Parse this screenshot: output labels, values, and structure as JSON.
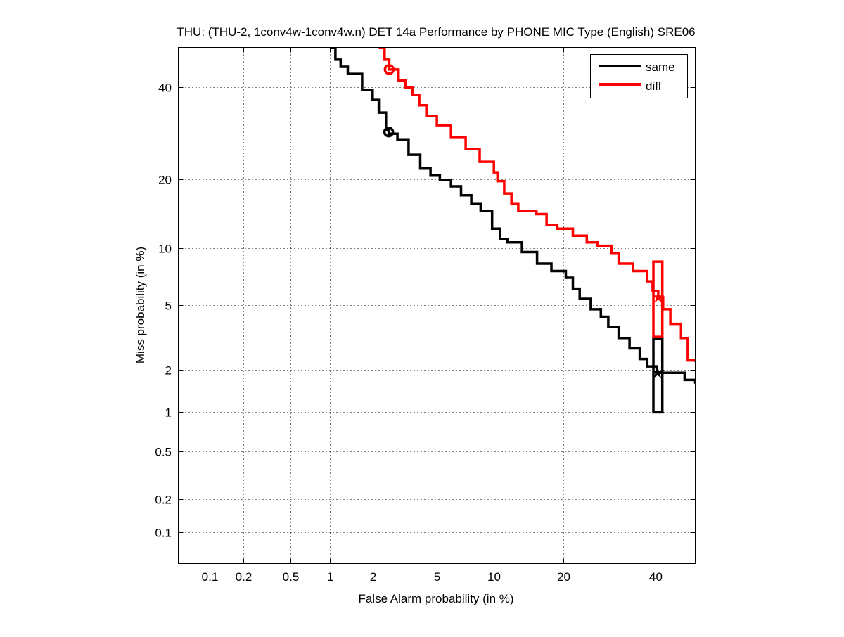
{
  "chart_data": {
    "type": "line",
    "title": "THU: (THU-2, 1conv4w-1conv4w.n) DET 14a Performance by PHONE MIC Type (English) SRE06",
    "xlabel": "False Alarm probability (in %)",
    "ylabel": "Miss probability (in %)",
    "xscale": "normal-deviate",
    "yscale": "normal-deviate",
    "xlim": [
      0.05,
      50
    ],
    "ylim": [
      0.05,
      50
    ],
    "grid": true,
    "x_ticks": [
      0.1,
      0.2,
      0.5,
      1,
      2,
      5,
      10,
      20,
      40
    ],
    "x_tick_labels": [
      "0.1",
      "0.2",
      "0.5",
      "1",
      "2",
      "5",
      "10",
      "20",
      "40"
    ],
    "y_ticks": [
      0.1,
      0.2,
      0.5,
      1,
      2,
      5,
      10,
      20,
      40
    ],
    "y_tick_labels": [
      "0.1",
      "0.2",
      "0.5",
      "1",
      "2",
      "5",
      "10",
      "20",
      "40"
    ],
    "legend_position": "top-right",
    "series": [
      {
        "name": "same",
        "color": "#000000",
        "points": [
          [
            1,
            50
          ],
          [
            1.1,
            46.9
          ],
          [
            1.2,
            45.1
          ],
          [
            1.35,
            43.3
          ],
          [
            1.7,
            39.3
          ],
          [
            2.0,
            36.9
          ],
          [
            2.2,
            33.9
          ],
          [
            2.45,
            29.9
          ],
          [
            2.55,
            29.1
          ],
          [
            2.9,
            27.9
          ],
          [
            3.4,
            24.7
          ],
          [
            4.0,
            22
          ],
          [
            4.6,
            20.7
          ],
          [
            5.2,
            19.9
          ],
          [
            6,
            18.8
          ],
          [
            6.8,
            17.3
          ],
          [
            7.7,
            15.9
          ],
          [
            8.6,
            14.9
          ],
          [
            9.8,
            12.4
          ],
          [
            10.7,
            11.1
          ],
          [
            11.6,
            10.7
          ],
          [
            13.5,
            9.6
          ],
          [
            15.7,
            8.4
          ],
          [
            18,
            7.7
          ],
          [
            20.5,
            7.1
          ],
          [
            21.8,
            6.2
          ],
          [
            23.1,
            5.45
          ],
          [
            25.3,
            4.75
          ],
          [
            27.4,
            4.3
          ],
          [
            29,
            3.75
          ],
          [
            31.3,
            3.2
          ],
          [
            33.8,
            2.75
          ],
          [
            36.2,
            2.35
          ],
          [
            38,
            2.1
          ],
          [
            40.3,
            1.9
          ],
          [
            45.5,
            1.9
          ],
          [
            47.3,
            1.7
          ],
          [
            50,
            1.6
          ]
        ],
        "min_dcf_point": [
          2.55,
          29.5
        ],
        "act_dcf_point": [
          40.5,
          1.9
        ],
        "confidence_box": {
          "x": [
            39.5,
            41.7
          ],
          "y": [
            1.0,
            3.15
          ]
        }
      },
      {
        "name": "diff",
        "color": "#ff0000",
        "points": [
          [
            2.2,
            50
          ],
          [
            2.4,
            46.9
          ],
          [
            2.57,
            44.4
          ],
          [
            2.95,
            41.6
          ],
          [
            3.25,
            39.9
          ],
          [
            3.6,
            38.1
          ],
          [
            3.95,
            35.6
          ],
          [
            4.35,
            33.1
          ],
          [
            5.0,
            31.0
          ],
          [
            6.0,
            28.4
          ],
          [
            7.2,
            25.9
          ],
          [
            8.5,
            23.3
          ],
          [
            10,
            21.3
          ],
          [
            10.4,
            19.7
          ],
          [
            11.2,
            17.6
          ],
          [
            12.1,
            15.9
          ],
          [
            13,
            14.9
          ],
          [
            15.6,
            14.4
          ],
          [
            17.2,
            12.9
          ],
          [
            19,
            12.4
          ],
          [
            21.8,
            11.5
          ],
          [
            24.5,
            10.7
          ],
          [
            26.7,
            10.3
          ],
          [
            29.7,
            9.5
          ],
          [
            31.3,
            8.4
          ],
          [
            34.6,
            7.7
          ],
          [
            38,
            6.8
          ],
          [
            39.3,
            6.0
          ],
          [
            40.7,
            5.55
          ],
          [
            41.9,
            4.75
          ],
          [
            43.7,
            3.9
          ],
          [
            46.4,
            3.2
          ],
          [
            48.1,
            2.3
          ],
          [
            50,
            2.25
          ]
        ],
        "min_dcf_point": [
          2.57,
          44.4
        ],
        "act_dcf_point": [
          40.7,
          5.55
        ],
        "confidence_box": {
          "x": [
            39.5,
            41.7
          ],
          "y": [
            3.25,
            8.6
          ]
        }
      }
    ]
  }
}
